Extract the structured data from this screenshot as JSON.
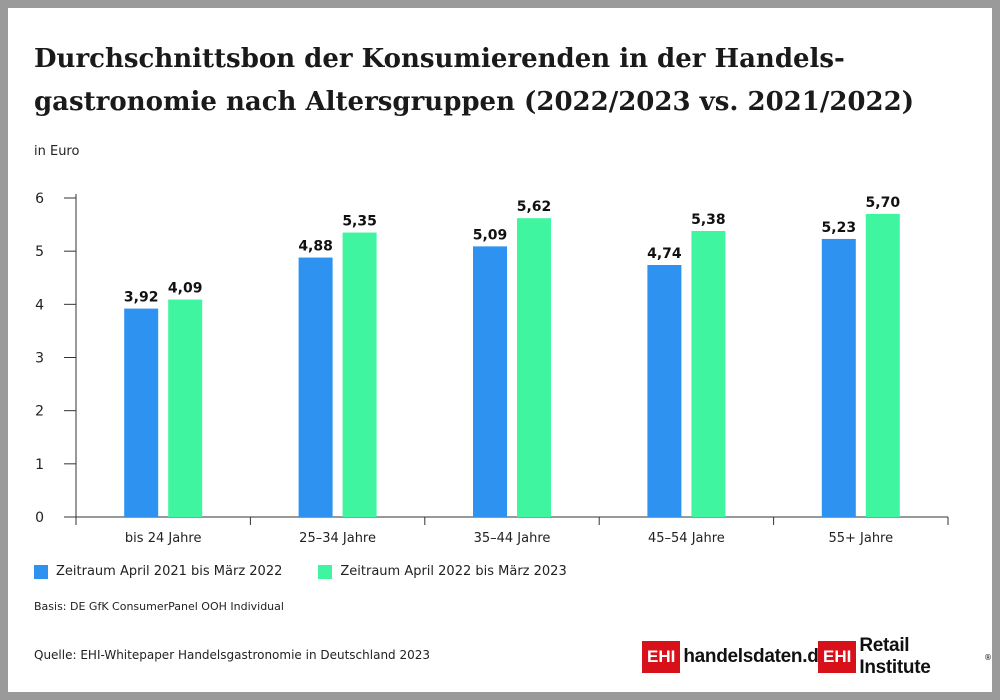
{
  "title": "Durchschnittsbon der Konsumierenden in der Handels-gastronomie nach Altersgruppen (2022/2023 vs. 2021/2022)",
  "title_line1": "Durchschnittsbon der Konsumierenden in der Handels-",
  "title_line2": "gastronomie nach Altersgruppen (2022/2023 vs. 2021/2022)",
  "unit_label": "in Euro",
  "basis": "Basis: DE GfK ConsumerPanel OOH Individual",
  "source": "Quelle: EHI-Whitepaper Handelsgastronomie in Deutschland 2023",
  "logos": {
    "logo1_box": "EHI",
    "logo1_text": "handelsdaten.de",
    "logo2_box": "EHI",
    "logo2_text": "Retail Institute",
    "logo2_mark": "®"
  },
  "colors": {
    "series1": "#2e93f0",
    "series2": "#3ff5a0",
    "logo_red": "#d8101a",
    "frame": "#9a9a9a"
  },
  "chart_data": {
    "type": "bar",
    "categories": [
      "bis 24 Jahre",
      "25–34 Jahre",
      "35–44 Jahre",
      "45–54 Jahre",
      "55+ Jahre"
    ],
    "series": [
      {
        "name": "Zeitraum April 2021 bis März 2022",
        "values": [
          3.92,
          4.88,
          5.09,
          4.74,
          5.23
        ],
        "labels": [
          "3,92",
          "4,88",
          "5,09",
          "4,74",
          "5,23"
        ]
      },
      {
        "name": "Zeitraum April 2022 bis März 2023",
        "values": [
          4.09,
          5.35,
          5.62,
          5.38,
          5.7
        ],
        "labels": [
          "4,09",
          "5,35",
          "5,62",
          "5,38",
          "5,70"
        ]
      }
    ],
    "ylabel": "in Euro",
    "ylim": [
      0,
      6
    ],
    "yticks": [
      "0",
      "1",
      "2",
      "3",
      "4",
      "5",
      "6"
    ],
    "grid": false,
    "legend": "bottom-left"
  }
}
